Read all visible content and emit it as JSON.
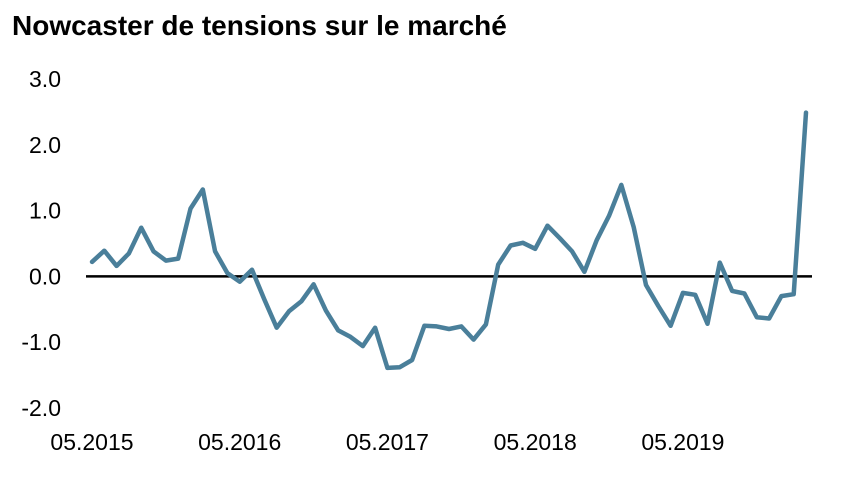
{
  "chart_data": {
    "type": "line",
    "title": "Nowcaster de tensions sur le marché",
    "subtitle": "",
    "xlabel": "",
    "ylabel": "",
    "x_tick_labels": [
      "05.2015",
      "05.2016",
      "05.2017",
      "05.2018",
      "05.2019"
    ],
    "y_tick_labels": [
      "-2.0",
      "-1.0",
      "0.0",
      "1.0",
      "2.0",
      "3.0"
    ],
    "ylim": [
      -2.0,
      3.0
    ],
    "grid": false,
    "legend": "none",
    "zero_line_color": "#000000",
    "series": [
      {
        "color": "#4a7f9a",
        "x": [
          "05.2015",
          "06.2015",
          "07.2015",
          "08.2015",
          "09.2015",
          "10.2015",
          "11.2015",
          "12.2015",
          "01.2016",
          "02.2016",
          "03.2016",
          "04.2016",
          "05.2016",
          "06.2016",
          "07.2016",
          "08.2016",
          "09.2016",
          "10.2016",
          "11.2016",
          "12.2016",
          "01.2017",
          "02.2017",
          "03.2017",
          "04.2017",
          "05.2017",
          "06.2017",
          "07.2017",
          "08.2017",
          "09.2017",
          "10.2017",
          "11.2017",
          "12.2017",
          "01.2018",
          "02.2018",
          "03.2018",
          "04.2018",
          "05.2018",
          "06.2018",
          "07.2018",
          "08.2018",
          "09.2018",
          "10.2018",
          "11.2018",
          "12.2018",
          "01.2019",
          "02.2019",
          "03.2019",
          "04.2019",
          "05.2019",
          "06.2019",
          "07.2019",
          "08.2019",
          "09.2019",
          "10.2019",
          "11.2019",
          "12.2019",
          "01.2020",
          "02.2020",
          "03.2020"
        ],
        "values": [
          0.22,
          0.39,
          0.16,
          0.35,
          0.74,
          0.38,
          0.24,
          0.27,
          1.03,
          1.32,
          0.38,
          0.05,
          -0.08,
          0.1,
          -0.35,
          -0.78,
          -0.53,
          -0.38,
          -0.12,
          -0.52,
          -0.82,
          -0.92,
          -1.06,
          -0.78,
          -1.39,
          -1.38,
          -1.27,
          -0.75,
          -0.76,
          -0.8,
          -0.76,
          -0.96,
          -0.73,
          0.18,
          0.47,
          0.51,
          0.42,
          0.77,
          0.58,
          0.38,
          0.07,
          0.55,
          0.92,
          1.39,
          0.75,
          -0.13,
          -0.45,
          -0.75,
          -0.25,
          -0.28,
          -0.72,
          0.21,
          -0.22,
          -0.26,
          -0.62,
          -0.64,
          -0.3,
          -0.27,
          2.49
        ]
      }
    ]
  }
}
